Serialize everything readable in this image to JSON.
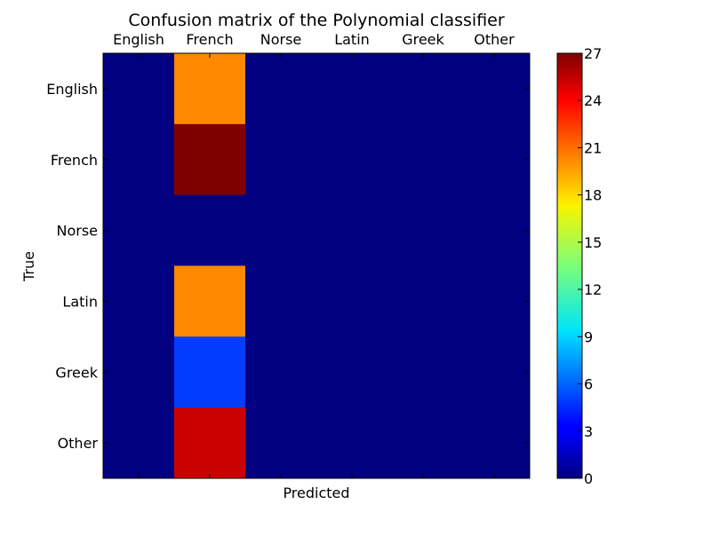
{
  "chart_data": {
    "type": "heatmap",
    "title": "Confusion matrix of the Polynomial classifier",
    "xlabel": "Predicted",
    "ylabel": "True",
    "x_categories": [
      "English",
      "French",
      "Norse",
      "Latin",
      "Greek",
      "Other"
    ],
    "y_categories": [
      "English",
      "French",
      "Norse",
      "Latin",
      "Greek",
      "Other"
    ],
    "values": [
      [
        0,
        20,
        0,
        0,
        0,
        0
      ],
      [
        0,
        27,
        0,
        0,
        0,
        0
      ],
      [
        0,
        0,
        0,
        0,
        0,
        0
      ],
      [
        0,
        20,
        0,
        0,
        0,
        0
      ],
      [
        0,
        5,
        0,
        0,
        0,
        0
      ],
      [
        0,
        25,
        0,
        0,
        0,
        0
      ]
    ],
    "colormap": "jet",
    "colorbar": {
      "range": [
        0,
        27
      ],
      "ticks": [
        0,
        3,
        6,
        9,
        12,
        15,
        18,
        21,
        24,
        27
      ]
    }
  }
}
